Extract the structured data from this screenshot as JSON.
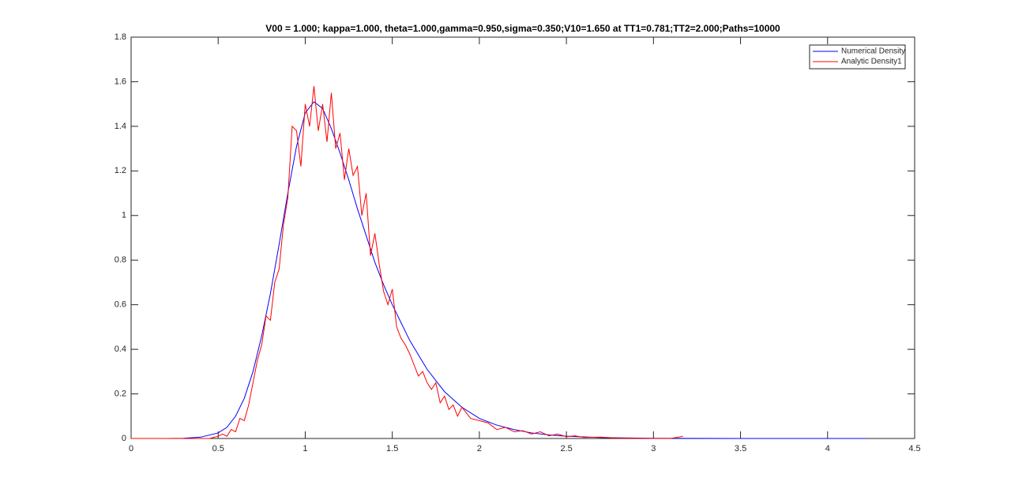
{
  "chart_data": {
    "type": "line",
    "title": "V00 = 1.000; kappa=1.000, theta=1.000,gamma=0.950,sigma=0.350;V10=1.650 at TT1=0.781;TT2=2.000;Paths=10000",
    "xlim": [
      0,
      4.5
    ],
    "xticks": [
      0,
      0.5,
      1,
      1.5,
      2,
      2.5,
      3,
      3.5,
      4,
      4.5
    ],
    "ylim": [
      0,
      1.8
    ],
    "yticks": [
      0,
      0.2,
      0.4,
      0.6,
      0.8,
      1,
      1.2,
      1.4,
      1.6,
      1.8
    ],
    "legend": "northeast",
    "series": [
      {
        "name": "Numerical Density",
        "color": "#0000ff",
        "x": [
          0,
          0.1,
          0.2,
          0.3,
          0.4,
          0.5,
          0.55,
          0.6,
          0.65,
          0.7,
          0.75,
          0.8,
          0.85,
          0.9,
          0.95,
          1.0,
          1.05,
          1.1,
          1.15,
          1.2,
          1.25,
          1.3,
          1.35,
          1.4,
          1.45,
          1.5,
          1.6,
          1.7,
          1.8,
          1.9,
          2.0,
          2.1,
          2.2,
          2.3,
          2.4,
          2.5,
          2.7,
          3.0,
          3.5,
          4.0,
          4.22
        ],
        "values": [
          0,
          0,
          0,
          0.001,
          0.006,
          0.025,
          0.05,
          0.1,
          0.18,
          0.3,
          0.46,
          0.65,
          0.87,
          1.1,
          1.31,
          1.46,
          1.51,
          1.48,
          1.39,
          1.28,
          1.16,
          1.03,
          0.91,
          0.79,
          0.69,
          0.6,
          0.44,
          0.31,
          0.21,
          0.14,
          0.09,
          0.06,
          0.04,
          0.025,
          0.016,
          0.01,
          0.004,
          0.001,
          0,
          0,
          0
        ]
      },
      {
        "name": "Analytic Density1",
        "color": "#ff0000",
        "x": [
          0,
          0.45,
          0.5,
          0.525,
          0.55,
          0.575,
          0.6,
          0.625,
          0.65,
          0.675,
          0.7,
          0.725,
          0.75,
          0.775,
          0.8,
          0.825,
          0.85,
          0.875,
          0.9,
          0.925,
          0.95,
          0.975,
          1.0,
          1.025,
          1.05,
          1.075,
          1.1,
          1.125,
          1.15,
          1.175,
          1.2,
          1.225,
          1.25,
          1.275,
          1.3,
          1.325,
          1.35,
          1.375,
          1.4,
          1.425,
          1.45,
          1.475,
          1.5,
          1.525,
          1.55,
          1.575,
          1.6,
          1.625,
          1.65,
          1.675,
          1.7,
          1.725,
          1.75,
          1.775,
          1.8,
          1.825,
          1.85,
          1.875,
          1.9,
          1.95,
          2.0,
          2.05,
          2.1,
          2.15,
          2.2,
          2.25,
          2.3,
          2.35,
          2.4,
          2.45,
          2.5,
          2.55,
          2.6,
          2.7,
          2.8,
          2.9,
          3.0,
          3.1,
          3.17
        ],
        "values": [
          0,
          0,
          0.01,
          0.02,
          0.01,
          0.04,
          0.03,
          0.09,
          0.08,
          0.15,
          0.25,
          0.35,
          0.42,
          0.55,
          0.53,
          0.7,
          0.76,
          0.96,
          1.08,
          1.4,
          1.38,
          1.22,
          1.5,
          1.4,
          1.58,
          1.38,
          1.5,
          1.33,
          1.55,
          1.3,
          1.37,
          1.16,
          1.3,
          1.18,
          1.22,
          1.0,
          1.1,
          0.82,
          0.92,
          0.78,
          0.66,
          0.6,
          0.67,
          0.5,
          0.45,
          0.42,
          0.38,
          0.33,
          0.28,
          0.3,
          0.25,
          0.22,
          0.25,
          0.16,
          0.19,
          0.13,
          0.15,
          0.1,
          0.14,
          0.09,
          0.08,
          0.07,
          0.04,
          0.05,
          0.03,
          0.035,
          0.02,
          0.03,
          0.012,
          0.02,
          0.008,
          0.012,
          0.005,
          0.006,
          0.002,
          0.001,
          0,
          0,
          0.01
        ]
      }
    ]
  }
}
